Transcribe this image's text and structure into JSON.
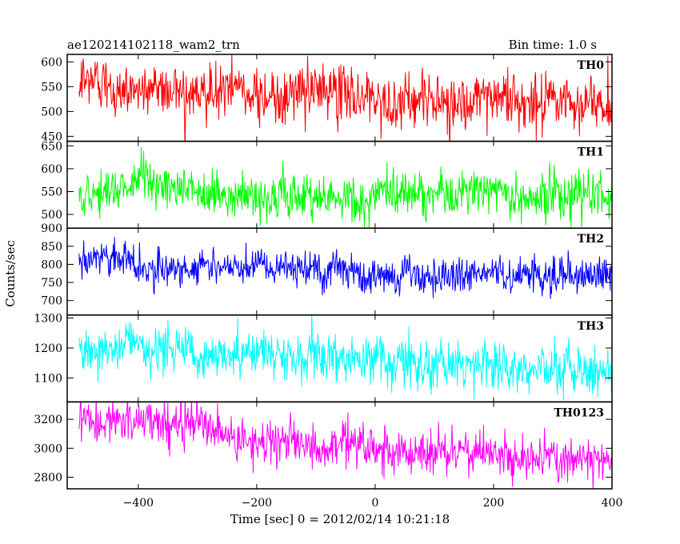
{
  "chart_data": {
    "type": "line",
    "title_left": "ae120214102118_wam2_trn",
    "title_right": "Bin time: 1.0 s",
    "xlabel": "Time [sec] 0 = 2012/02/14 10:21:18",
    "ylabel": "Counts/sec",
    "xlim": [
      -520,
      400
    ],
    "xticks": [
      -400,
      -200,
      0,
      200,
      400
    ],
    "x_start": -500,
    "x_end": 400,
    "bin_time": 1.0,
    "panels": [
      {
        "name": "TH0",
        "color": "#ff0000",
        "ylim": [
          440,
          615
        ],
        "yticks": [
          450,
          500,
          550,
          600
        ],
        "mean_start": 555,
        "mean_end": 510,
        "noise": 28
      },
      {
        "name": "TH1",
        "color": "#00ff00",
        "ylim": [
          470,
          660
        ],
        "yticks": [
          500,
          550,
          600,
          650
        ],
        "mean_start": 550,
        "mean_end": 535,
        "noise": 25
      },
      {
        "name": "TH2",
        "color": "#0000ff",
        "ylim": [
          660,
          900
        ],
        "yticks": [
          700,
          750,
          800,
          850,
          900
        ],
        "mean_start": 800,
        "mean_end": 760,
        "noise": 25
      },
      {
        "name": "TH3",
        "color": "#00ffff",
        "ylim": [
          1020,
          1310
        ],
        "yticks": [
          1100,
          1200,
          1300
        ],
        "mean_start": 1195,
        "mean_end": 1120,
        "noise": 40
      },
      {
        "name": "TH0123",
        "color": "#ff00ff",
        "ylim": [
          2720,
          3320
        ],
        "yticks": [
          2800,
          3000,
          3200
        ],
        "ytick_labels": [
          "2800",
          "3000",
          "3200"
        ],
        "mean_start": 3170,
        "mean_end": 2930,
        "noise": 75
      }
    ]
  }
}
